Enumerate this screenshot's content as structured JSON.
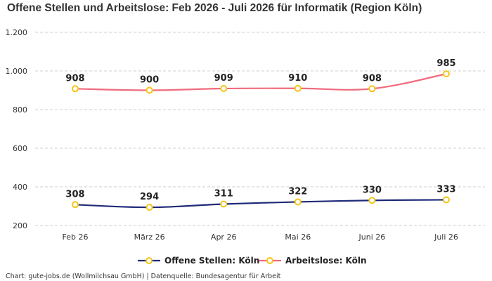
{
  "chart_data": {
    "type": "line",
    "title": "Offene Stellen und Arbeitslose: Feb 2026 - Juli 2026 für Informatik (Region Köln)",
    "categories": [
      "Feb 26",
      "März 26",
      "Apr 26",
      "Mai 26",
      "Juni 26",
      "Juli 26"
    ],
    "series": [
      {
        "name": "Offene Stellen: Köln",
        "values": [
          308,
          294,
          311,
          322,
          330,
          333
        ],
        "labels": [
          "308",
          "294",
          "311",
          "322",
          "330",
          "333"
        ],
        "color": "#1e2a78"
      },
      {
        "name": "Arbeitslose: Köln",
        "values": [
          908,
          900,
          909,
          910,
          908,
          985
        ],
        "labels": [
          "908",
          "900",
          "909",
          "910",
          "908",
          "985"
        ],
        "color": "#f06a7e"
      }
    ],
    "ylim": [
      200,
      1200
    ],
    "yticks": [
      200,
      400,
      600,
      800,
      1000,
      1200
    ],
    "ytick_labels": [
      "200",
      "400",
      "600",
      "800",
      "1.000",
      "1.200"
    ],
    "grid": true,
    "marker_color": "#f5c518",
    "legend_position": "bottom",
    "xlabel": "",
    "ylabel": ""
  },
  "credit": "Chart: gute-jobs.de (Wollmilchsau GmbH) | Datenquelle: Bundesagentur für Arbeit"
}
